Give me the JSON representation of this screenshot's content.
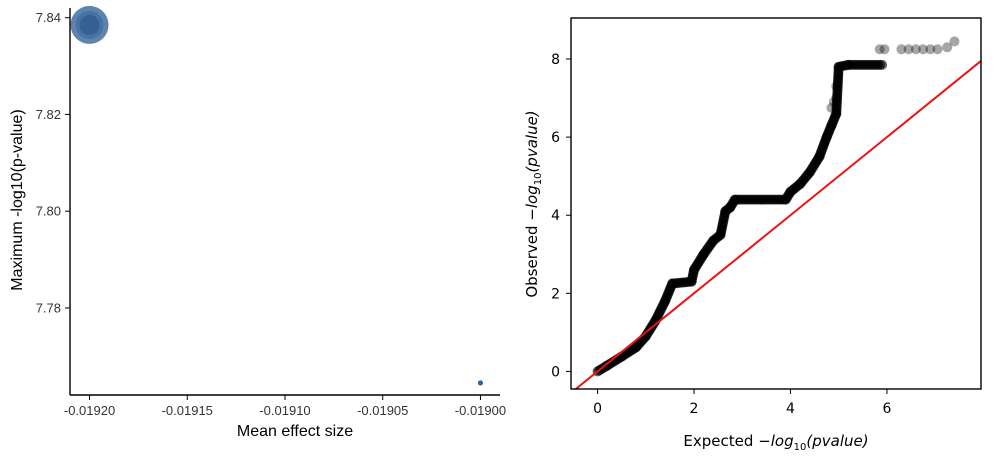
{
  "chart_data": [
    {
      "type": "scatter",
      "xlabel": "Mean effect size",
      "ylabel": "Maximum -log10(p-value)",
      "xlim": [
        -0.01921,
        -0.01899
      ],
      "ylim": [
        7.762,
        7.842
      ],
      "xticks": [
        -0.0192,
        -0.01915,
        -0.0191,
        -0.01905,
        -0.019
      ],
      "xtick_labels": [
        "-0.01920",
        "-0.01915",
        "-0.01910",
        "-0.01905",
        "-0.01900"
      ],
      "yticks": [
        7.78,
        7.8,
        7.82,
        7.84
      ],
      "ytick_labels": [
        "7.78",
        "7.80",
        "7.82",
        "7.84"
      ],
      "points": [
        {
          "x": -0.0192,
          "y": 7.8385,
          "size": "large"
        },
        {
          "x": -0.019,
          "y": 7.7645,
          "size": "small"
        }
      ],
      "point_color": "#34649a",
      "grid": false
    },
    {
      "type": "scatter",
      "xlabel": "Expected −log10(pvalue)",
      "xlabel_parts": {
        "pre": "Expected ",
        "minus": "−",
        "log": "log",
        "sub": "10",
        "arg": "(pvalue)"
      },
      "ylabel": "Observed −log10(pvalue)",
      "ylabel_parts": {
        "pre": "Observed ",
        "minus": "−",
        "log": "log",
        "sub": "10",
        "arg": "(pvalue)"
      },
      "xlim": [
        -0.55,
        7.95
      ],
      "ylim": [
        -0.45,
        9.05
      ],
      "xticks": [
        0,
        2,
        4,
        6
      ],
      "xtick_labels": [
        "0",
        "2",
        "4",
        "6"
      ],
      "yticks": [
        0,
        2,
        4,
        6,
        8
      ],
      "ytick_labels": [
        "0",
        "2",
        "4",
        "6",
        "8"
      ],
      "curve": [
        [
          0,
          0
        ],
        [
          0.2,
          0.15
        ],
        [
          0.5,
          0.38
        ],
        [
          0.8,
          0.62
        ],
        [
          1.0,
          0.9
        ],
        [
          1.2,
          1.3
        ],
        [
          1.4,
          1.8
        ],
        [
          1.55,
          2.25
        ],
        [
          1.95,
          2.3
        ],
        [
          2.0,
          2.6
        ],
        [
          2.2,
          3.0
        ],
        [
          2.4,
          3.35
        ],
        [
          2.55,
          3.5
        ],
        [
          2.65,
          4.1
        ],
        [
          2.75,
          4.2
        ],
        [
          2.85,
          4.4
        ],
        [
          3.9,
          4.4
        ],
        [
          4.0,
          4.6
        ],
        [
          4.2,
          4.8
        ],
        [
          4.4,
          5.1
        ],
        [
          4.6,
          5.5
        ],
        [
          4.75,
          6.0
        ],
        [
          4.85,
          6.3
        ],
        [
          4.95,
          6.6
        ],
        [
          5.0,
          7.8
        ],
        [
          5.2,
          7.85
        ],
        [
          5.9,
          7.85
        ]
      ],
      "scattered_points": [
        [
          4.95,
          7.3
        ],
        [
          4.95,
          7.0
        ],
        [
          4.9,
          6.9
        ],
        [
          4.85,
          6.75
        ],
        [
          5.85,
          8.25
        ],
        [
          5.95,
          8.25
        ],
        [
          6.3,
          8.25
        ],
        [
          6.45,
          8.25
        ],
        [
          6.6,
          8.25
        ],
        [
          6.75,
          8.25
        ],
        [
          6.9,
          8.25
        ],
        [
          7.05,
          8.25
        ],
        [
          7.25,
          8.3
        ],
        [
          7.4,
          8.45
        ]
      ],
      "reference_line": {
        "from": [
          -0.6,
          -0.6
        ],
        "to": [
          8.0,
          8.0
        ],
        "color": "#ee1111"
      },
      "point_color": "#000000",
      "grid": false
    }
  ]
}
